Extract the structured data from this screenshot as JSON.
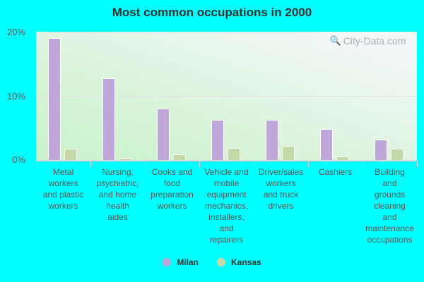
{
  "chart_data": {
    "type": "bar",
    "title": "Most common occupations in 2000",
    "xlabel": "",
    "ylabel": "",
    "ylim": [
      0,
      20
    ],
    "yticks": [
      "0%",
      "10%",
      "20%"
    ],
    "grid": true,
    "legend_position": "bottom",
    "categories": [
      "Metal workers and plastic workers",
      "Nursing, psychiatric, and home health aides",
      "Cooks and food preparation workers",
      "Vehicle and mobile equipment mechanics, installers, and repairers",
      "Driver/sales workers and truck drivers",
      "Cashiers",
      "Building and grounds cleaning and maintenance occupations"
    ],
    "series": [
      {
        "name": "Milan",
        "color": "#bfa8d9",
        "values": [
          19.0,
          12.7,
          8.0,
          6.3,
          6.3,
          4.8,
          3.2
        ]
      },
      {
        "name": "Kansas",
        "color": "#c5d9a8",
        "values": [
          1.8,
          0.3,
          0.9,
          1.9,
          2.2,
          0.5,
          1.8
        ]
      }
    ]
  },
  "labels": [
    "Metal\nworkers\nand plastic\nworkers",
    "Nursing,\npsychiatric,\nand home\nhealth\naides",
    "Cooks and\nfood\npreparation\nworkers",
    "Vehicle and\nmobile\nequipment\nmechanics,\ninstallers,\nand\nrepairers",
    "Driver/sales\nworkers\nand truck\ndrivers",
    "Cashiers",
    "Building\nand\ngrounds\ncleaning\nand\nmaintenance\noccupations"
  ],
  "watermark": "City-Data.com",
  "background_color": "#00ffff"
}
